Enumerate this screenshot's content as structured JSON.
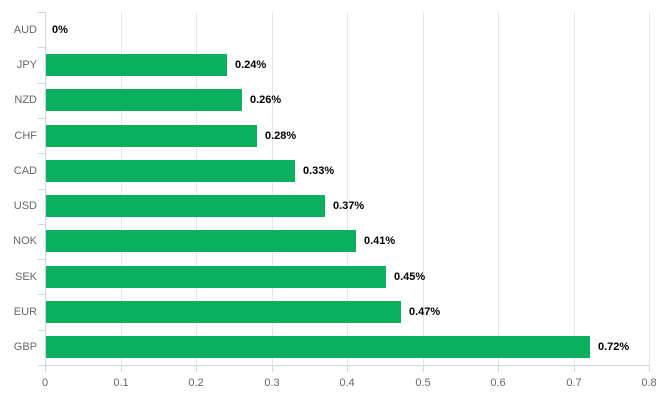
{
  "chart_data": {
    "type": "bar",
    "title": "",
    "orientation": "horizontal",
    "categories": [
      "AUD",
      "JPY",
      "NZD",
      "CHF",
      "CAD",
      "USD",
      "NOK",
      "SEK",
      "EUR",
      "GBP"
    ],
    "values": [
      0,
      0.24,
      0.26,
      0.28,
      0.33,
      0.37,
      0.41,
      0.45,
      0.47,
      0.72
    ],
    "data_labels": [
      "0%",
      "0.24%",
      "0.26%",
      "0.28%",
      "0.33%",
      "0.37%",
      "0.41%",
      "0.45%",
      "0.47%",
      "0.72%"
    ],
    "x_tick_labels": [
      "0",
      "0.1",
      "0.2",
      "0.3",
      "0.4",
      "0.5",
      "0.6",
      "0.7",
      "0.8"
    ],
    "xlim": [
      0,
      0.8
    ],
    "xlabel": "",
    "ylabel": "",
    "legend": "none",
    "grid": "vertical",
    "colors": {
      "bar": "#0bb05f",
      "gridline": "#e6e6e6",
      "axis": "#ccd6eb",
      "category_label": "#666666",
      "tick_label": "#666666",
      "value_label": "#000000",
      "background": "#ffffff"
    }
  }
}
